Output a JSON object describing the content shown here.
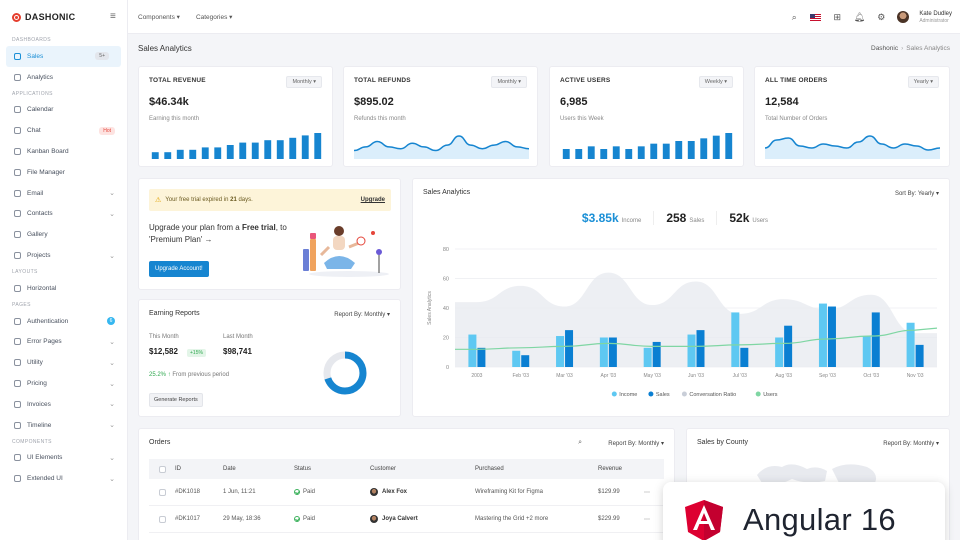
{
  "brand": {
    "name": "DASHONIC",
    "accent": "#e53e2e"
  },
  "sidebar": {
    "sections": [
      {
        "title": "DASHBOARDS",
        "items": [
          {
            "label": "Sales",
            "badge": "5+",
            "active": true
          },
          {
            "label": "Analytics"
          }
        ]
      },
      {
        "title": "APPLICATIONS",
        "items": [
          {
            "label": "Calendar"
          },
          {
            "label": "Chat",
            "badge": "Hot",
            "badge_type": "hot"
          },
          {
            "label": "Kanban Board"
          },
          {
            "label": "File Manager"
          },
          {
            "label": "Email",
            "chevron": true
          },
          {
            "label": "Contacts",
            "chevron": true
          },
          {
            "label": "Gallery"
          },
          {
            "label": "Projects",
            "chevron": true
          }
        ]
      },
      {
        "title": "LAYOUTS",
        "items": [
          {
            "label": "Horizontal"
          }
        ]
      },
      {
        "title": "PAGES",
        "items": [
          {
            "label": "Authentication",
            "badge": "6",
            "badge_type": "dot"
          },
          {
            "label": "Error Pages",
            "chevron": true
          },
          {
            "label": "Utility",
            "chevron": true
          },
          {
            "label": "Pricing",
            "chevron": true
          },
          {
            "label": "Invoices",
            "chevron": true
          },
          {
            "label": "Timeline",
            "chevron": true
          }
        ]
      },
      {
        "title": "COMPONENTS",
        "items": [
          {
            "label": "UI Elements",
            "chevron": true
          },
          {
            "label": "Extended UI",
            "chevron": true
          }
        ]
      }
    ]
  },
  "topbar": {
    "menus": [
      "Components",
      "Categories"
    ],
    "user": {
      "name": "Kate Dudley",
      "role": "Administrator"
    }
  },
  "page": {
    "title": "Sales Analytics",
    "breadcrumb": [
      "Dashonic",
      "Sales Analytics"
    ]
  },
  "stats": [
    {
      "title": "TOTAL REVENUE",
      "select": "Monthly",
      "value": "$46.34k",
      "sub": "Earning this month",
      "chart": "bars",
      "data": [
        2,
        2,
        3,
        3,
        4,
        4,
        5,
        6,
        6,
        7,
        7,
        8,
        9,
        10
      ]
    },
    {
      "title": "TOTAL REFUNDS",
      "select": "Monthly",
      "value": "$895.02",
      "sub": "Refunds this month",
      "chart": "wave",
      "data": [
        3,
        5,
        8,
        5,
        4,
        7,
        5,
        3,
        6,
        11,
        6,
        4,
        6,
        8,
        5,
        4
      ]
    },
    {
      "title": "ACTIVE USERS",
      "select": "Weekly",
      "value": "6,985",
      "sub": "Users this Week",
      "chart": "bars",
      "data": [
        3,
        3,
        4,
        3,
        4,
        3,
        4,
        5,
        5,
        6,
        6,
        7,
        8,
        9
      ]
    },
    {
      "title": "ALL TIME ORDERS",
      "select": "Yearly",
      "value": "12,584",
      "sub": "Total Number of Orders",
      "chart": "wave",
      "data": [
        4,
        8,
        9,
        5,
        4,
        6,
        5,
        4,
        7,
        10,
        6,
        4,
        6,
        5,
        3,
        4
      ]
    }
  ],
  "trial": {
    "alert_prefix": "Your free trial expired in ",
    "alert_days": "21",
    "alert_suffix": " days.",
    "alert_link": "Upgrade",
    "text_1": "Upgrade your plan from a ",
    "text_bold": "Free trial",
    "text_2": ", to 'Premium Plan' →",
    "button": "Upgrade Account!"
  },
  "earning": {
    "title": "Earning Reports",
    "report_by": "Report By: Monthly",
    "this_month_label": "This Month",
    "this_month_value": "$12,582",
    "this_month_badge": "+15%",
    "last_month_label": "Last Month",
    "last_month_value": "$98,741",
    "change_pct": "25.2%",
    "change_text": "From previous period",
    "button": "Generate Reports",
    "donut_fraction": 0.7
  },
  "sales_analytics": {
    "title": "Sales Analytics",
    "sort": "Sort By: Yearly",
    "stats": [
      {
        "value": "$3.85k",
        "label": "Income",
        "highlight": true
      },
      {
        "value": "258",
        "label": "Sales"
      },
      {
        "value": "52k",
        "label": "Users"
      }
    ]
  },
  "chart_data": {
    "type": "bar",
    "categories": [
      "2003",
      "Feb '03",
      "Mar '03",
      "Apr '03",
      "May '03",
      "Jun '03",
      "Jul '03",
      "Aug '03",
      "Sep '03",
      "Oct '03",
      "Nov '03"
    ],
    "ylabel": "Sales Analytics",
    "ylim": [
      0,
      80
    ],
    "yticks": [
      0,
      20,
      40,
      60,
      80
    ],
    "series": [
      {
        "name": "Income",
        "type": "bar",
        "color": "#5ec8f2",
        "values": [
          22,
          11,
          21,
          20,
          13,
          22,
          37,
          20,
          43,
          21,
          30
        ]
      },
      {
        "name": "Sales",
        "type": "bar",
        "color": "#0a7fd2",
        "values": [
          13,
          8,
          25,
          20,
          17,
          25,
          13,
          28,
          41,
          37,
          15
        ]
      },
      {
        "name": "Conversation Ratio",
        "type": "area",
        "color": "#e9ebf0",
        "values": [
          44,
          55,
          41,
          64,
          42,
          58,
          36,
          46,
          39,
          49,
          23
        ]
      },
      {
        "name": "Users",
        "type": "line",
        "color": "#7fd6a3",
        "values": [
          12,
          13,
          14,
          16,
          14,
          14,
          15,
          16,
          19,
          21,
          25
        ]
      }
    ],
    "legend_position": "bottom"
  },
  "orders": {
    "title": "Orders",
    "report_by": "Report By: Monthly",
    "columns": [
      "ID",
      "Date",
      "Status",
      "Customer",
      "Purchased",
      "Revenue"
    ],
    "rows": [
      {
        "id": "#DK1018",
        "date": "1 Jun, 11:21",
        "status": "Paid",
        "customer": "Alex Fox",
        "purchased": "Wireframing Kit for Figma",
        "revenue": "$129.99"
      },
      {
        "id": "#DK1017",
        "date": "29 May, 18:36",
        "status": "Paid",
        "customer": "Joya Calvert",
        "purchased": "Mastering the Grid +2 more",
        "revenue": "$229.99"
      }
    ]
  },
  "county": {
    "title": "Sales by County",
    "report_by": "Report By: Monthly"
  },
  "overlay": {
    "text": "Angular 16",
    "color": "#dd0031"
  }
}
